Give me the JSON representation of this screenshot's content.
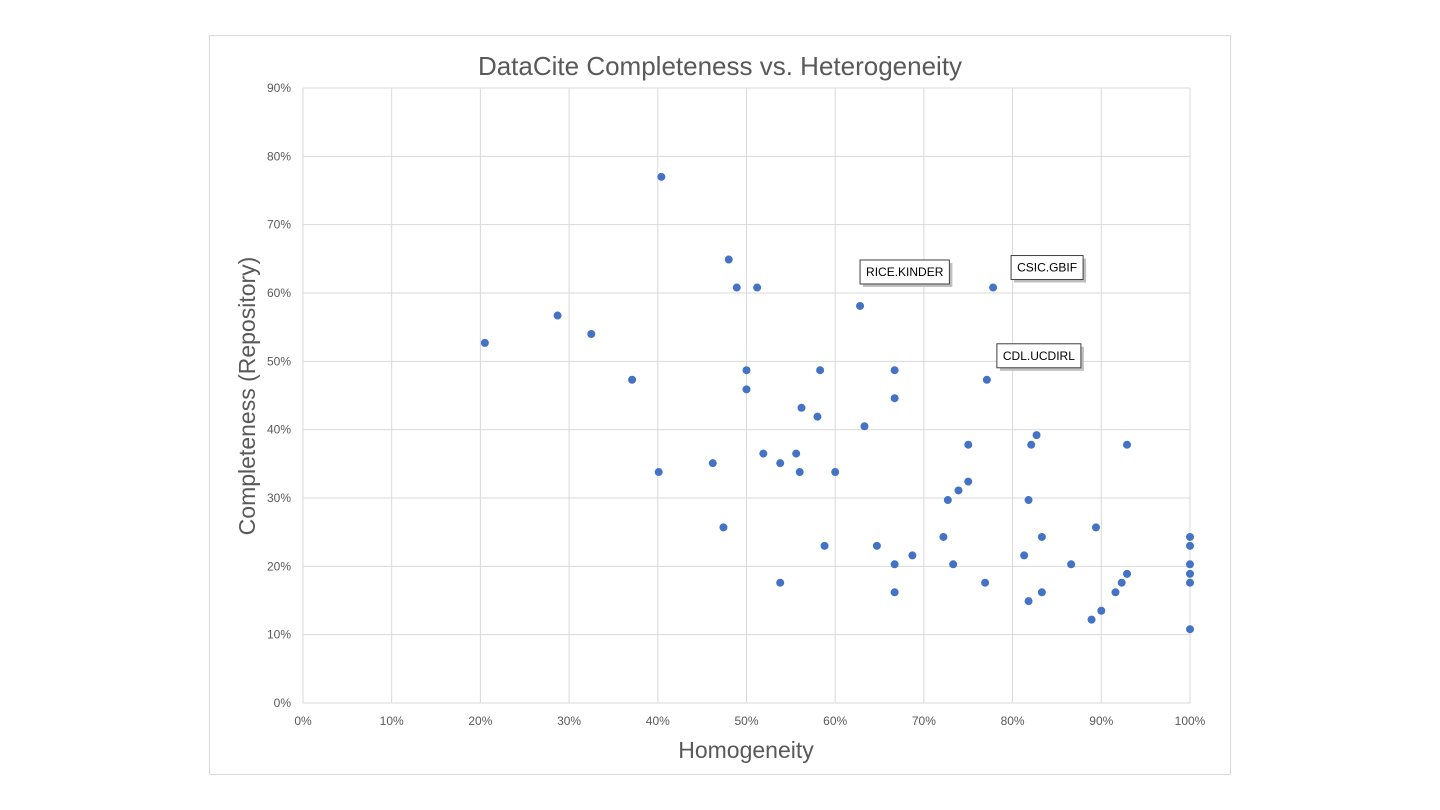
{
  "chart_data": {
    "type": "scatter",
    "title": "DataCite Completeness vs. Heterogeneity",
    "xlabel": "Homogeneity",
    "ylabel": "Completeness (Repository)",
    "xlim": [
      0,
      100
    ],
    "ylim": [
      0,
      90
    ],
    "x_ticks": [
      "0%",
      "10%",
      "20%",
      "30%",
      "40%",
      "50%",
      "60%",
      "70%",
      "80%",
      "90%",
      "100%"
    ],
    "y_ticks": [
      "0%",
      "10%",
      "20%",
      "30%",
      "40%",
      "50%",
      "60%",
      "70%",
      "80%",
      "90%"
    ],
    "grid": true,
    "legend": "none",
    "marker_color": "#4472c4",
    "points": [
      {
        "x": 20.5,
        "y": 52.7
      },
      {
        "x": 28.7,
        "y": 56.7
      },
      {
        "x": 32.5,
        "y": 54.0
      },
      {
        "x": 37.1,
        "y": 47.3
      },
      {
        "x": 40.1,
        "y": 33.8
      },
      {
        "x": 40.4,
        "y": 77.0
      },
      {
        "x": 46.2,
        "y": 35.1
      },
      {
        "x": 47.4,
        "y": 25.7
      },
      {
        "x": 48.0,
        "y": 64.9
      },
      {
        "x": 48.9,
        "y": 60.8
      },
      {
        "x": 50.0,
        "y": 48.7
      },
      {
        "x": 50.0,
        "y": 45.9
      },
      {
        "x": 51.2,
        "y": 60.8
      },
      {
        "x": 51.9,
        "y": 36.5
      },
      {
        "x": 53.8,
        "y": 35.1
      },
      {
        "x": 53.8,
        "y": 17.6
      },
      {
        "x": 55.6,
        "y": 36.5
      },
      {
        "x": 56.0,
        "y": 33.8
      },
      {
        "x": 56.2,
        "y": 43.2
      },
      {
        "x": 58.0,
        "y": 41.9
      },
      {
        "x": 58.3,
        "y": 48.7
      },
      {
        "x": 58.8,
        "y": 23.0
      },
      {
        "x": 60.0,
        "y": 33.8
      },
      {
        "x": 62.8,
        "y": 58.1
      },
      {
        "x": 63.3,
        "y": 40.5
      },
      {
        "x": 64.7,
        "y": 23.0
      },
      {
        "x": 66.7,
        "y": 48.7
      },
      {
        "x": 66.7,
        "y": 44.6
      },
      {
        "x": 66.7,
        "y": 20.3
      },
      {
        "x": 66.7,
        "y": 16.2
      },
      {
        "x": 68.7,
        "y": 21.6
      },
      {
        "x": 72.2,
        "y": 24.3
      },
      {
        "x": 72.7,
        "y": 29.7
      },
      {
        "x": 73.3,
        "y": 20.3
      },
      {
        "x": 73.9,
        "y": 31.1
      },
      {
        "x": 75.0,
        "y": 37.8
      },
      {
        "x": 75.0,
        "y": 32.4
      },
      {
        "x": 76.9,
        "y": 17.6
      },
      {
        "x": 77.1,
        "y": 47.3
      },
      {
        "x": 77.8,
        "y": 60.8
      },
      {
        "x": 81.3,
        "y": 21.6
      },
      {
        "x": 81.8,
        "y": 29.7
      },
      {
        "x": 81.8,
        "y": 14.9
      },
      {
        "x": 82.1,
        "y": 37.8
      },
      {
        "x": 82.7,
        "y": 39.2
      },
      {
        "x": 83.3,
        "y": 24.3
      },
      {
        "x": 83.3,
        "y": 16.2
      },
      {
        "x": 86.6,
        "y": 20.3
      },
      {
        "x": 88.9,
        "y": 12.2
      },
      {
        "x": 89.4,
        "y": 25.7
      },
      {
        "x": 90.0,
        "y": 13.5
      },
      {
        "x": 91.6,
        "y": 16.2
      },
      {
        "x": 92.3,
        "y": 17.6
      },
      {
        "x": 92.9,
        "y": 18.9
      },
      {
        "x": 92.9,
        "y": 37.8
      },
      {
        "x": 100,
        "y": 24.3
      },
      {
        "x": 100,
        "y": 23.0
      },
      {
        "x": 100,
        "y": 20.3
      },
      {
        "x": 100,
        "y": 18.9
      },
      {
        "x": 100,
        "y": 17.6
      },
      {
        "x": 100,
        "y": 10.8
      }
    ],
    "annotations": [
      {
        "text": "RICE.KINDER",
        "x": 62.8,
        "y": 58.1
      },
      {
        "text": "CSIC.GBIF",
        "x": 77.8,
        "y": 60.8
      },
      {
        "text": "CDL.UCDIRL",
        "x": 77.1,
        "y": 47.3
      }
    ]
  }
}
